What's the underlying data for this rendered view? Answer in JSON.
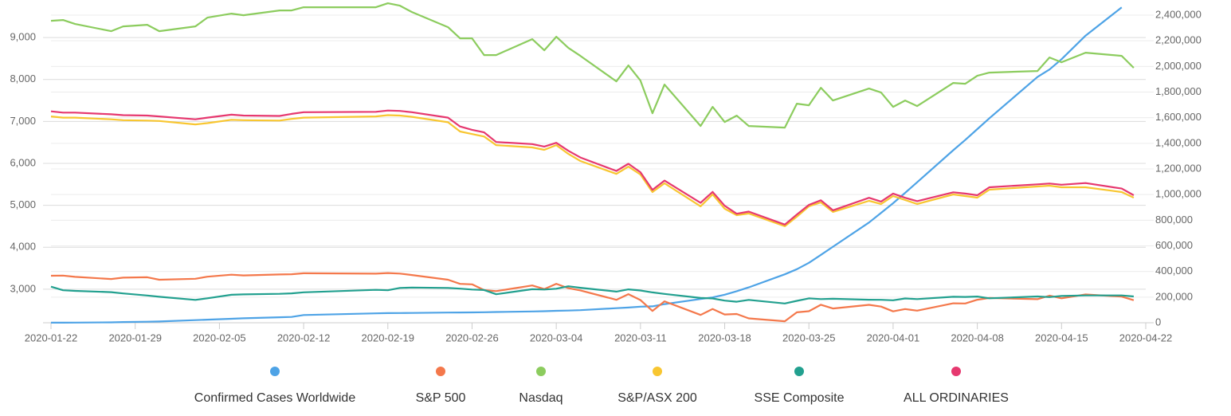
{
  "chart_data": {
    "type": "line",
    "x": [
      "2020-01-22",
      "2020-01-23",
      "2020-01-24",
      "2020-01-27",
      "2020-01-28",
      "2020-01-30",
      "2020-01-31",
      "2020-02-03",
      "2020-02-04",
      "2020-02-06",
      "2020-02-07",
      "2020-02-10",
      "2020-02-11",
      "2020-02-12",
      "2020-02-18",
      "2020-02-19",
      "2020-02-20",
      "2020-02-21",
      "2020-02-24",
      "2020-02-25",
      "2020-02-26",
      "2020-02-27",
      "2020-02-28",
      "2020-03-02",
      "2020-03-03",
      "2020-03-04",
      "2020-03-05",
      "2020-03-06",
      "2020-03-09",
      "2020-03-10",
      "2020-03-11",
      "2020-03-12",
      "2020-03-13",
      "2020-03-16",
      "2020-03-17",
      "2020-03-18",
      "2020-03-19",
      "2020-03-20",
      "2020-03-23",
      "2020-03-24",
      "2020-03-25",
      "2020-03-26",
      "2020-03-27",
      "2020-03-30",
      "2020-03-31",
      "2020-04-01",
      "2020-04-02",
      "2020-04-03",
      "2020-04-06",
      "2020-04-07",
      "2020-04-08",
      "2020-04-09",
      "2020-04-13",
      "2020-04-14",
      "2020-04-15",
      "2020-04-17",
      "2020-04-20",
      "2020-04-21"
    ],
    "xlim": [
      "2020-01-22",
      "2020-04-22"
    ],
    "xticks": [
      "2020-01-22",
      "2020-01-29",
      "2020-02-05",
      "2020-02-12",
      "2020-02-19",
      "2020-02-26",
      "2020-03-04",
      "2020-03-11",
      "2020-03-18",
      "2020-03-25",
      "2020-04-01",
      "2020-04-08",
      "2020-04-15",
      "2020-04-22"
    ],
    "ylim": [
      2200,
      9800
    ],
    "yticks": [
      {
        "value": 3000,
        "label": "3,000"
      },
      {
        "value": 4000,
        "label": "4,000"
      },
      {
        "value": 5000,
        "label": "5,000"
      },
      {
        "value": 6000,
        "label": "6,000"
      },
      {
        "value": 7000,
        "label": "7,000"
      },
      {
        "value": 8000,
        "label": "8,000"
      },
      {
        "value": 9000,
        "label": "9,000"
      }
    ],
    "y2lim": [
      0,
      2487000
    ],
    "y2ticks": [
      0,
      {
        "value": 200000,
        "label": "200,000"
      },
      {
        "value": 400000,
        "label": "400,000"
      },
      {
        "value": 600000,
        "label": "600,000"
      },
      {
        "value": 800000,
        "label": "800,000"
      },
      {
        "value": 1000000,
        "label": "1,000,000"
      },
      {
        "value": 1200000,
        "label": "1,200,000"
      },
      {
        "value": 1400000,
        "label": "1,400,000"
      },
      {
        "value": 1600000,
        "label": "1,600,000"
      },
      {
        "value": 1800000,
        "label": "1,800,000"
      },
      {
        "value": 2000000,
        "label": "2,000,000"
      },
      {
        "value": 2200000,
        "label": "2,200,000"
      },
      {
        "value": 2400000,
        "label": "2,400,000"
      }
    ],
    "grid": true,
    "legend": "bottom",
    "series": [
      {
        "name": "Confirmed Cases Worldwide",
        "color": "#4ea3e6",
        "axis": "y2",
        "values": [
          555,
          654,
          941,
          2927,
          5578,
          8234,
          9927,
          20630,
          24553,
          31211,
          34598,
          43105,
          45170,
          60368,
          73332,
          75184,
          75700,
          76677,
          79356,
          80088,
          80854,
          81932,
          83652,
          88580,
          90443,
          93016,
          95314,
          98425,
          113561,
          118592,
          125865,
          128343,
          145193,
          184976,
          198006,
          218638,
          246293,
          275944,
          378287,
          417966,
          467594,
          529591,
          593291,
          782365,
          857487,
          932605,
          1013157,
          1095917,
          1346299,
          1426096,
          1511104,
          1595350,
          1917320,
          1976192,
          2056054,
          2240191,
          2460000,
          null
        ]
      },
      {
        "name": "S&P 500",
        "color": "#f4784b",
        "values": [
          3321,
          3325,
          3295,
          3244,
          3276,
          3284,
          3226,
          3249,
          3298,
          3345,
          3328,
          3352,
          3358,
          3379,
          3370,
          3386,
          3373,
          3338,
          3226,
          3128,
          3116,
          2979,
          2954,
          3090,
          3003,
          3130,
          3024,
          2972,
          2747,
          2882,
          2741,
          2481,
          2711,
          2386,
          2529,
          2398,
          2409,
          2305,
          2237,
          2448,
          2476,
          2630,
          2541,
          2627,
          2585,
          2471,
          2527,
          2489,
          2664,
          2660,
          2750,
          2790,
          2762,
          2846,
          2784,
          2875,
          2823,
          2737
        ]
      },
      {
        "name": "Nasdaq",
        "color": "#8ccc5e",
        "values": [
          9399,
          9418,
          9323,
          9152,
          9266,
          9304,
          9152,
          9266,
          9475,
          9570,
          9532,
          9646,
          9646,
          9722,
          9722,
          9817,
          9760,
          9608,
          9247,
          8981,
          8981,
          8582,
          8582,
          8962,
          8696,
          9019,
          8753,
          8563,
          7955,
          8335,
          7974,
          7196,
          7879,
          6892,
          7348,
          6987,
          7139,
          6892,
          6854,
          7424,
          7386,
          7804,
          7500,
          7785,
          7690,
          7348,
          7500,
          7367,
          7918,
          7899,
          8088,
          8164,
          8202,
          8525,
          8411,
          8639,
          8563,
          8278
        ]
      },
      {
        "name": "S&P/ASX 200",
        "color": "#f8c631",
        "values": [
          7120,
          7090,
          7090,
          7050,
          7030,
          7020,
          7010,
          6930,
          6960,
          7040,
          7030,
          7020,
          7060,
          7090,
          7120,
          7150,
          7140,
          7110,
          6980,
          6760,
          6700,
          6640,
          6436,
          6380,
          6323,
          6436,
          6227,
          6057,
          5750,
          5923,
          5734,
          5316,
          5525,
          4975,
          5260,
          4918,
          4765,
          4804,
          4500,
          4728,
          4975,
          5069,
          4842,
          5107,
          5031,
          5221,
          5126,
          5031,
          5259,
          5221,
          5183,
          5373,
          5449,
          5468,
          5430,
          5430,
          5316,
          5183
        ]
      },
      {
        "name": "SSE Composite",
        "color": "#22a08f",
        "values": [
          3060,
          2976,
          2960,
          2930,
          2900,
          2850,
          2820,
          2746,
          2783,
          2866,
          2876,
          2890,
          2901,
          2926,
          2984,
          2975,
          3030,
          3039,
          3031,
          3013,
          2992,
          2980,
          2880,
          3000,
          2992,
          3011,
          3071,
          3034,
          2943,
          2997,
          2969,
          2923,
          2887,
          2790,
          2779,
          2728,
          2702,
          2745,
          2660,
          2722,
          2781,
          2765,
          2772,
          2750,
          2747,
          2735,
          2780,
          2764,
          2820,
          2815,
          2826,
          2783,
          2827,
          2811,
          2838,
          2852,
          2852,
          2827
        ]
      },
      {
        "name": "ALL ORDINARIES",
        "color": "#e6386f",
        "values": [
          7240,
          7210,
          7210,
          7170,
          7150,
          7140,
          7120,
          7050,
          7090,
          7160,
          7140,
          7130,
          7180,
          7220,
          7230,
          7260,
          7250,
          7220,
          7090,
          6880,
          6800,
          6740,
          6510,
          6460,
          6400,
          6490,
          6300,
          6140,
          5820,
          5990,
          5790,
          5370,
          5590,
          5060,
          5320,
          4990,
          4800,
          4850,
          4540,
          4780,
          5010,
          5120,
          4880,
          5180,
          5090,
          5280,
          5180,
          5100,
          5310,
          5280,
          5240,
          5430,
          5500,
          5520,
          5490,
          5530,
          5400,
          5240
        ]
      }
    ]
  }
}
